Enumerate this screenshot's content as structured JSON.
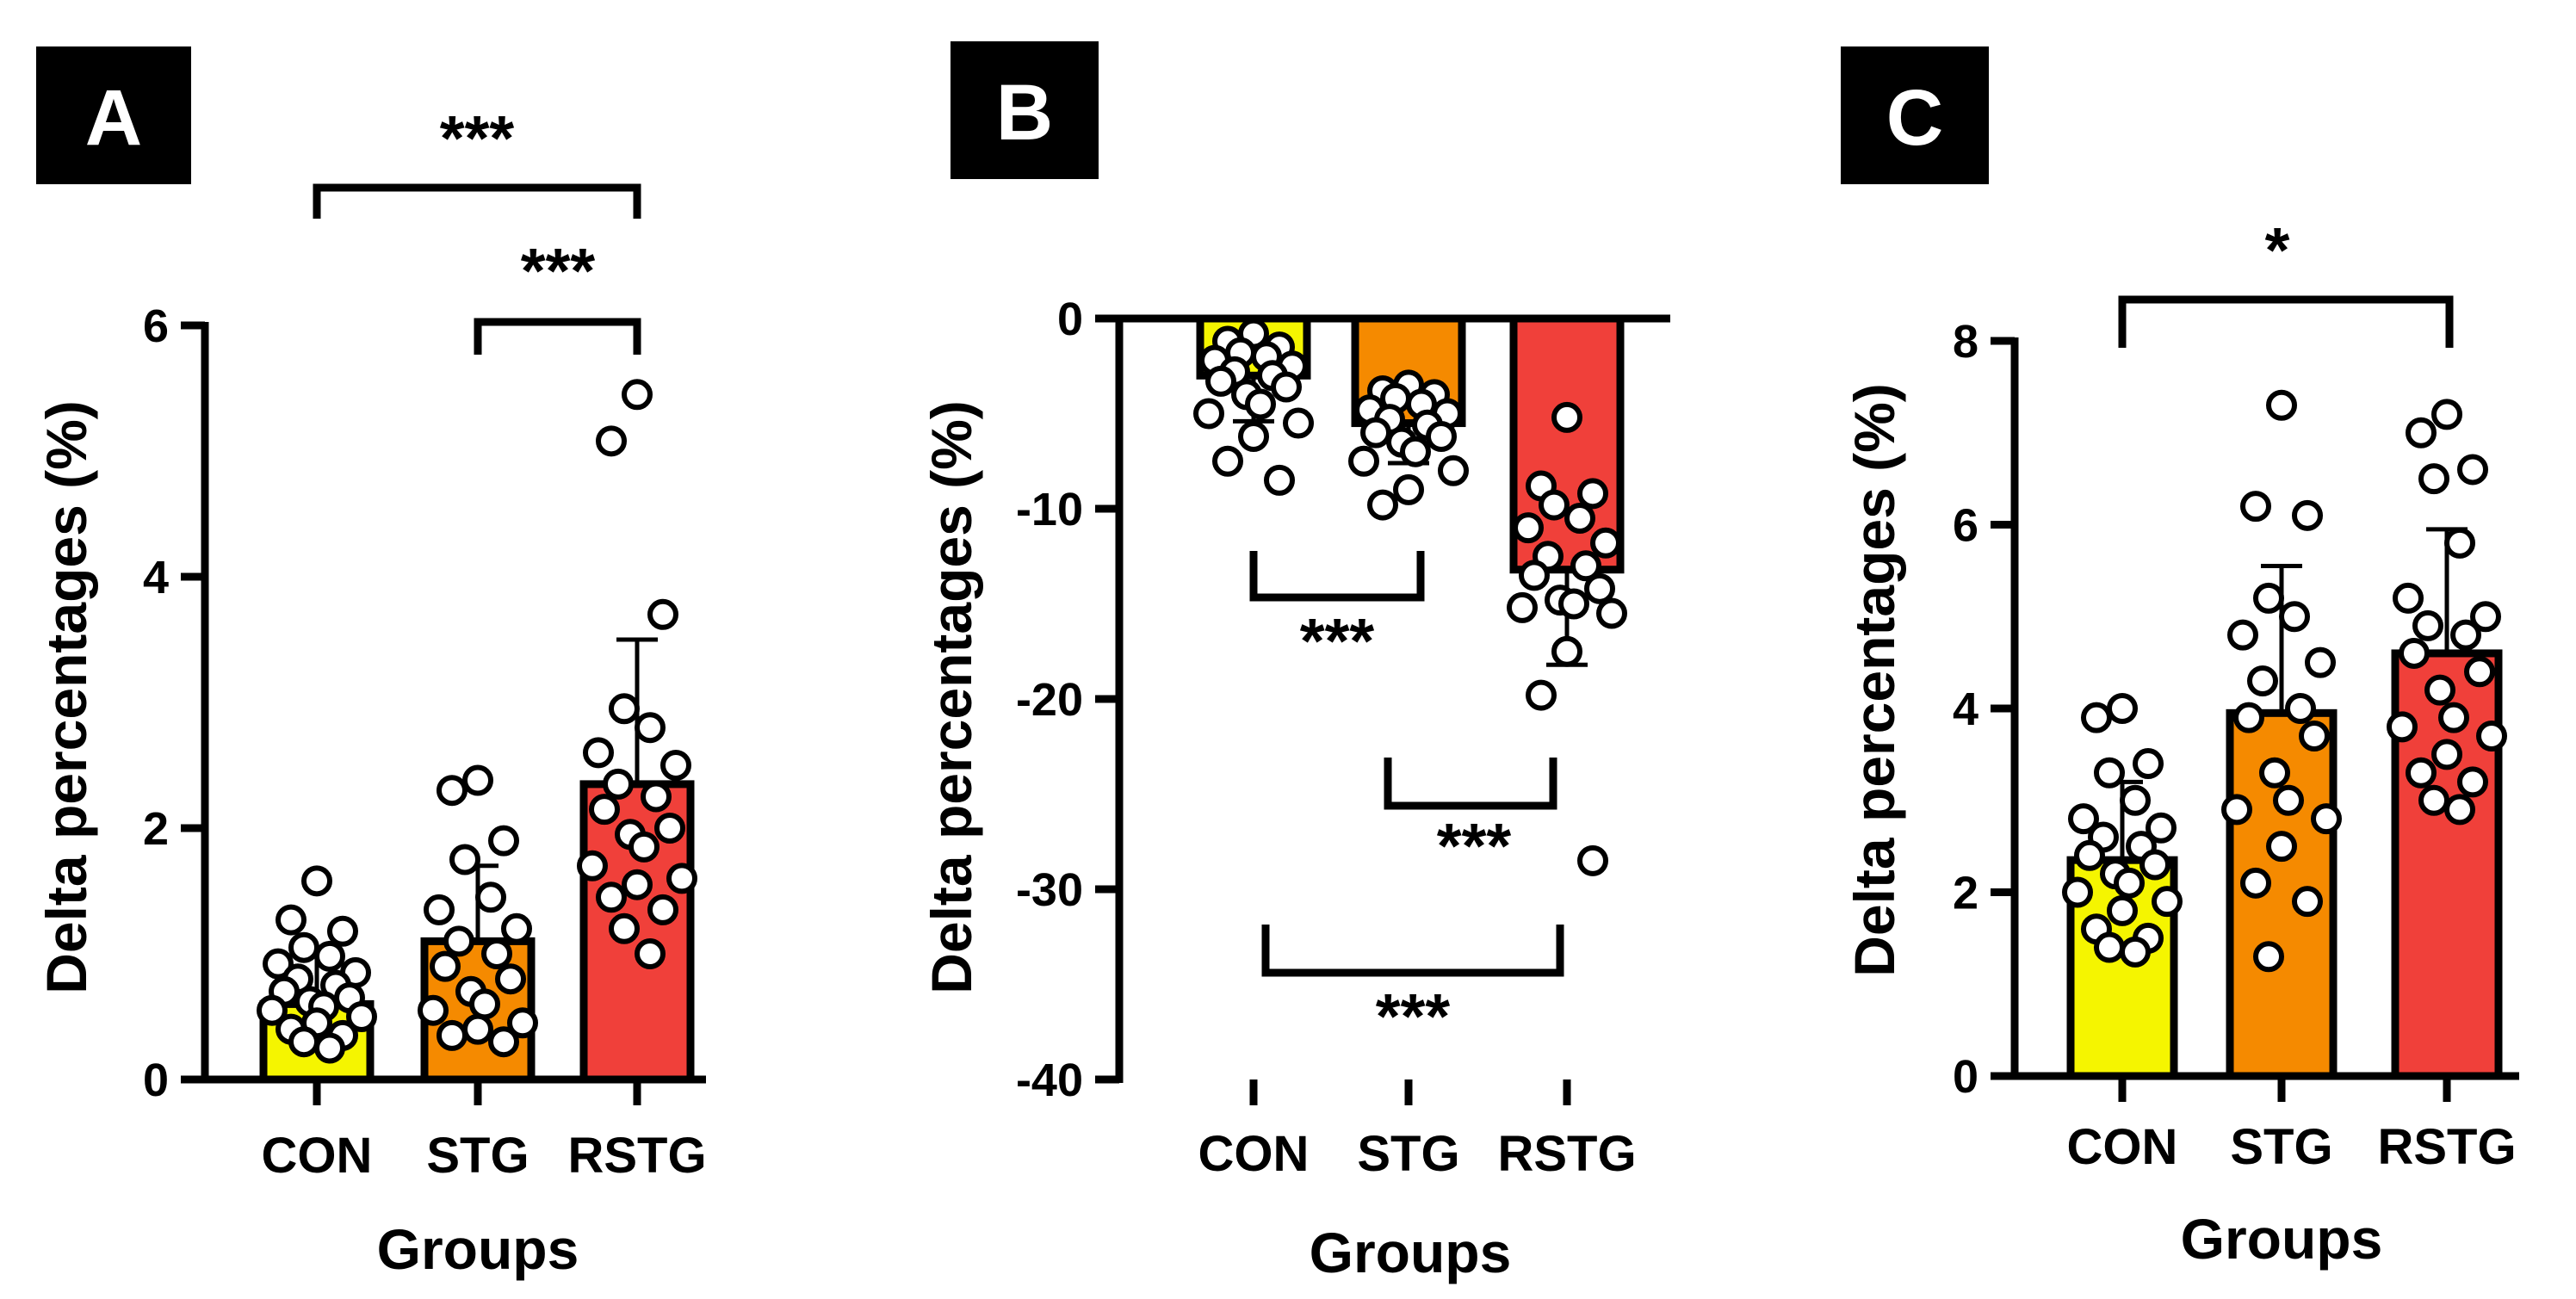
{
  "colors": {
    "CON": "#f5f500",
    "STG": "#f58a00",
    "RSTG": "#f0403a",
    "badge_bg": "#000000",
    "badge_text": "#ffffff",
    "axis": "#000000"
  },
  "chart_data": [
    {
      "panel": "A",
      "type": "bar",
      "xlabel": "Groups",
      "ylabel": "Delta percentages (%)",
      "ylim": [
        0,
        6
      ],
      "yticks": [
        "0",
        "2",
        "4",
        "6"
      ],
      "categories": [
        "CON",
        "STG",
        "RSTG"
      ],
      "values": [
        0.6,
        1.1,
        2.35
      ],
      "error_sd": [
        0.4,
        0.6,
        1.15
      ],
      "points": [
        [
          1.58,
          1.27,
          1.18,
          1.05,
          0.98,
          0.92,
          0.85,
          0.8,
          0.75,
          0.7,
          0.65,
          0.62,
          0.58,
          0.55,
          0.5,
          0.45,
          0.4,
          0.35,
          0.3,
          0.25
        ],
        [
          2.38,
          2.3,
          1.9,
          1.75,
          1.45,
          1.35,
          1.2,
          1.1,
          1.0,
          0.9,
          0.8,
          0.7,
          0.6,
          0.55,
          0.45,
          0.4,
          0.35,
          0.3
        ],
        [
          5.45,
          5.08,
          3.7,
          2.95,
          2.8,
          2.6,
          2.5,
          2.35,
          2.25,
          2.15,
          2.0,
          1.95,
          1.85,
          1.7,
          1.6,
          1.55,
          1.45,
          1.35,
          1.2,
          1.0
        ]
      ],
      "significance": [
        {
          "from": "CON",
          "to": "RSTG",
          "label": "***"
        },
        {
          "from": "STG",
          "to": "RSTG",
          "label": "***"
        }
      ]
    },
    {
      "panel": "B",
      "type": "bar",
      "xlabel": "Groups",
      "ylabel": "Delta percentages (%)",
      "ylim": [
        -40,
        0
      ],
      "yticks": [
        "0",
        "-10",
        "-20",
        "-30",
        "-40"
      ],
      "categories": [
        "CON",
        "STG",
        "RSTG"
      ],
      "values": [
        -3.0,
        -5.5,
        -13.2
      ],
      "error_sd": [
        2.4,
        2.1,
        5.0
      ],
      "points": [
        [
          -0.8,
          -1.2,
          -1.5,
          -1.8,
          -2.0,
          -2.2,
          -2.5,
          -2.8,
          -3.0,
          -3.3,
          -3.6,
          -4.0,
          -4.5,
          -5.0,
          -5.5,
          -6.2,
          -7.5,
          -8.5
        ],
        [
          -3.5,
          -3.8,
          -4.0,
          -4.2,
          -4.5,
          -4.8,
          -5.0,
          -5.3,
          -5.6,
          -6.0,
          -6.2,
          -6.5,
          -7.0,
          -7.5,
          -8.0,
          -9.0,
          -9.8
        ],
        [
          -5.2,
          -8.8,
          -9.2,
          -9.8,
          -10.5,
          -11.0,
          -11.8,
          -12.5,
          -13.0,
          -13.5,
          -14.2,
          -14.8,
          -15.0,
          -15.2,
          -15.5,
          -17.5,
          -19.8,
          -28.5
        ]
      ],
      "significance": [
        {
          "from": "CON",
          "to": "STG",
          "label": "***"
        },
        {
          "from": "STG",
          "to": "RSTG",
          "label": "***"
        },
        {
          "from": "CON",
          "to": "RSTG",
          "label": "***"
        }
      ]
    },
    {
      "panel": "C",
      "type": "bar",
      "xlabel": "Groups",
      "ylabel": "Delta percentages (%)",
      "ylim": [
        0,
        8
      ],
      "yticks": [
        "0",
        "2",
        "4",
        "6",
        "8"
      ],
      "categories": [
        "CON",
        "STG",
        "RSTG"
      ],
      "values": [
        2.35,
        3.95,
        4.6
      ],
      "error_sd": [
        0.85,
        1.6,
        1.35
      ],
      "points": [
        [
          4.0,
          3.9,
          3.4,
          3.3,
          3.0,
          2.8,
          2.7,
          2.6,
          2.5,
          2.4,
          2.3,
          2.2,
          2.1,
          2.0,
          1.9,
          1.8,
          1.6,
          1.5,
          1.4,
          1.35
        ],
        [
          7.3,
          6.2,
          6.1,
          5.2,
          5.0,
          4.8,
          4.5,
          4.3,
          4.0,
          3.9,
          3.7,
          3.3,
          3.0,
          2.9,
          2.8,
          2.5,
          2.1,
          1.9,
          1.3
        ],
        [
          7.2,
          7.0,
          6.6,
          6.5,
          5.8,
          5.2,
          5.0,
          4.9,
          4.8,
          4.6,
          4.4,
          4.2,
          3.9,
          3.8,
          3.7,
          3.5,
          3.3,
          3.2,
          3.0,
          2.9
        ]
      ],
      "significance": [
        {
          "from": "CON",
          "to": "RSTG",
          "label": "*"
        }
      ]
    }
  ]
}
